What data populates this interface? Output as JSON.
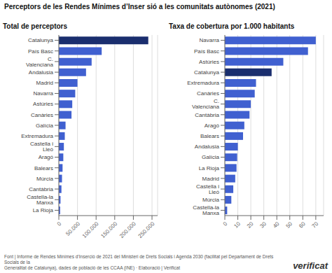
{
  "title": "Perceptors de les Rendes Mínimes d’Inser sió a les comunitats autònomes (2021)",
  "annotations": [
    "Font | Informe de Rendes Mínimes d’Inserció de 2021 del Ministeri de Drets Socials i Agenda 2030 (facilitat pel Departament de Drets Socials de la\nGeneralitat de Catalunya), dades de població de les CCAA (INE) · Elaboració | Verificat",
    "verificat"
  ],
  "chart_data": [
    {
      "type": "bar",
      "orientation": "horizontal",
      "subtitle": "Total de perceptors",
      "categories": [
        "Catalunya",
        "País Basc",
        "C. Valenciana",
        "Andalusia",
        "Madrid",
        "Navarra",
        "Astúries",
        "Canàries",
        "Galícia",
        "Extremadura",
        "Castella i Lleó",
        "Aragó",
        "Balears",
        "Múrcia",
        "Cantàbria",
        "Castella-la Manxa",
        "La Rioja"
      ],
      "values": [
        240000,
        115000,
        88000,
        73000,
        50000,
        44000,
        36000,
        34000,
        18000,
        16000,
        13500,
        12000,
        10000,
        8500,
        7000,
        4500,
        3500
      ],
      "colors": [
        "#1a2e6e",
        "#4060d0",
        "#4060d0",
        "#4060d0",
        "#4060d0",
        "#4060d0",
        "#4060d0",
        "#4060d0",
        "#4060d0",
        "#4060d0",
        "#4060d0",
        "#4060d0",
        "#4060d0",
        "#4060d0",
        "#4060d0",
        "#4060d0",
        "#4060d0"
      ],
      "xlim": [
        0,
        265000
      ],
      "xticks": [
        0,
        {
          "value": 50000,
          "label": "50.000"
        },
        {
          "value": 100000,
          "label": "100.000"
        },
        {
          "value": 150000,
          "label": "150.000"
        },
        {
          "value": 200000,
          "label": "200.000"
        },
        {
          "value": 250000,
          "label": "250.000"
        }
      ],
      "grid": true
    },
    {
      "type": "bar",
      "orientation": "horizontal",
      "subtitle": "Taxa de cobertura por 1.000 habitants",
      "categories": [
        "Navarra",
        "País Basc",
        "Astúries",
        "Catalunya",
        "Extremadura",
        "Canàries",
        "C. Valenciana",
        "Cantàbria",
        "Aragó",
        "Balears",
        "Andalusia",
        "Galícia",
        "La Rioja",
        "Madrid",
        "Castella i Lleó",
        "Múrcia",
        "Castella-la Manxa"
      ],
      "values": [
        70,
        64,
        45,
        36,
        24,
        23,
        20,
        19,
        15,
        14,
        10,
        9.5,
        9,
        8,
        6.5,
        5,
        1.8
      ],
      "colors": [
        "#4060d0",
        "#4060d0",
        "#4060d0",
        "#1a2e6e",
        "#4060d0",
        "#4060d0",
        "#4060d0",
        "#4060d0",
        "#4060d0",
        "#4060d0",
        "#4060d0",
        "#4060d0",
        "#4060d0",
        "#4060d0",
        "#4060d0",
        "#4060d0",
        "#4060d0"
      ],
      "xlim": [
        0,
        76
      ],
      "xticks": [
        0,
        10,
        20,
        30,
        40,
        50,
        60,
        70
      ],
      "grid": true
    }
  ]
}
